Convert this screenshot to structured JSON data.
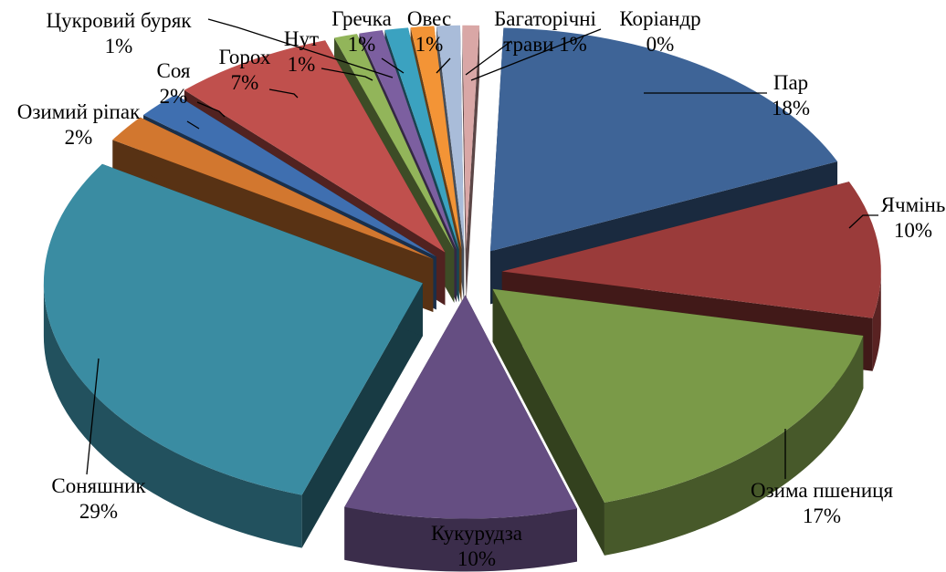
{
  "chart_data": {
    "type": "pie",
    "style": "3d-exploded",
    "title": "",
    "slices": [
      {
        "name": "Пар",
        "value": 18,
        "label": "18%",
        "color": "#3E6497"
      },
      {
        "name": "Ячмінь",
        "value": 10,
        "label": "10%",
        "color": "#9A3B3A"
      },
      {
        "name": "Озима пшениця",
        "value": 17,
        "label": "17%",
        "color": "#7A9A48"
      },
      {
        "name": "Кукурудза",
        "value": 10,
        "label": "10%",
        "color": "#654E82"
      },
      {
        "name": "Соняшник",
        "value": 29,
        "label": "29%",
        "color": "#3A8CA2"
      },
      {
        "name": "Озимий ріпак",
        "value": 2,
        "label": "2%",
        "color": "#D2772F"
      },
      {
        "name": "Соя",
        "value": 2,
        "label": "2%",
        "color": "#3F6FB0"
      },
      {
        "name": "Горох",
        "value": 7,
        "label": "7%",
        "color": "#C0504D"
      },
      {
        "name": "Нут",
        "value": 1,
        "label": "1%",
        "color": "#92B55A"
      },
      {
        "name": "Цукровий буряк",
        "value": 1,
        "label": "1%",
        "color": "#7C5FA0"
      },
      {
        "name": "Гречка",
        "value": 1,
        "label": "1%",
        "color": "#3BA2C0"
      },
      {
        "name": "Овес",
        "value": 1,
        "label": "1%",
        "color": "#F39436"
      },
      {
        "name": "Багаторічні трави",
        "value": 1,
        "label": "1%",
        "color": "#A9BCD9"
      },
      {
        "name": "Коріандр",
        "value": 0,
        "label": "0%",
        "color": "#D9A7A6"
      }
    ]
  }
}
